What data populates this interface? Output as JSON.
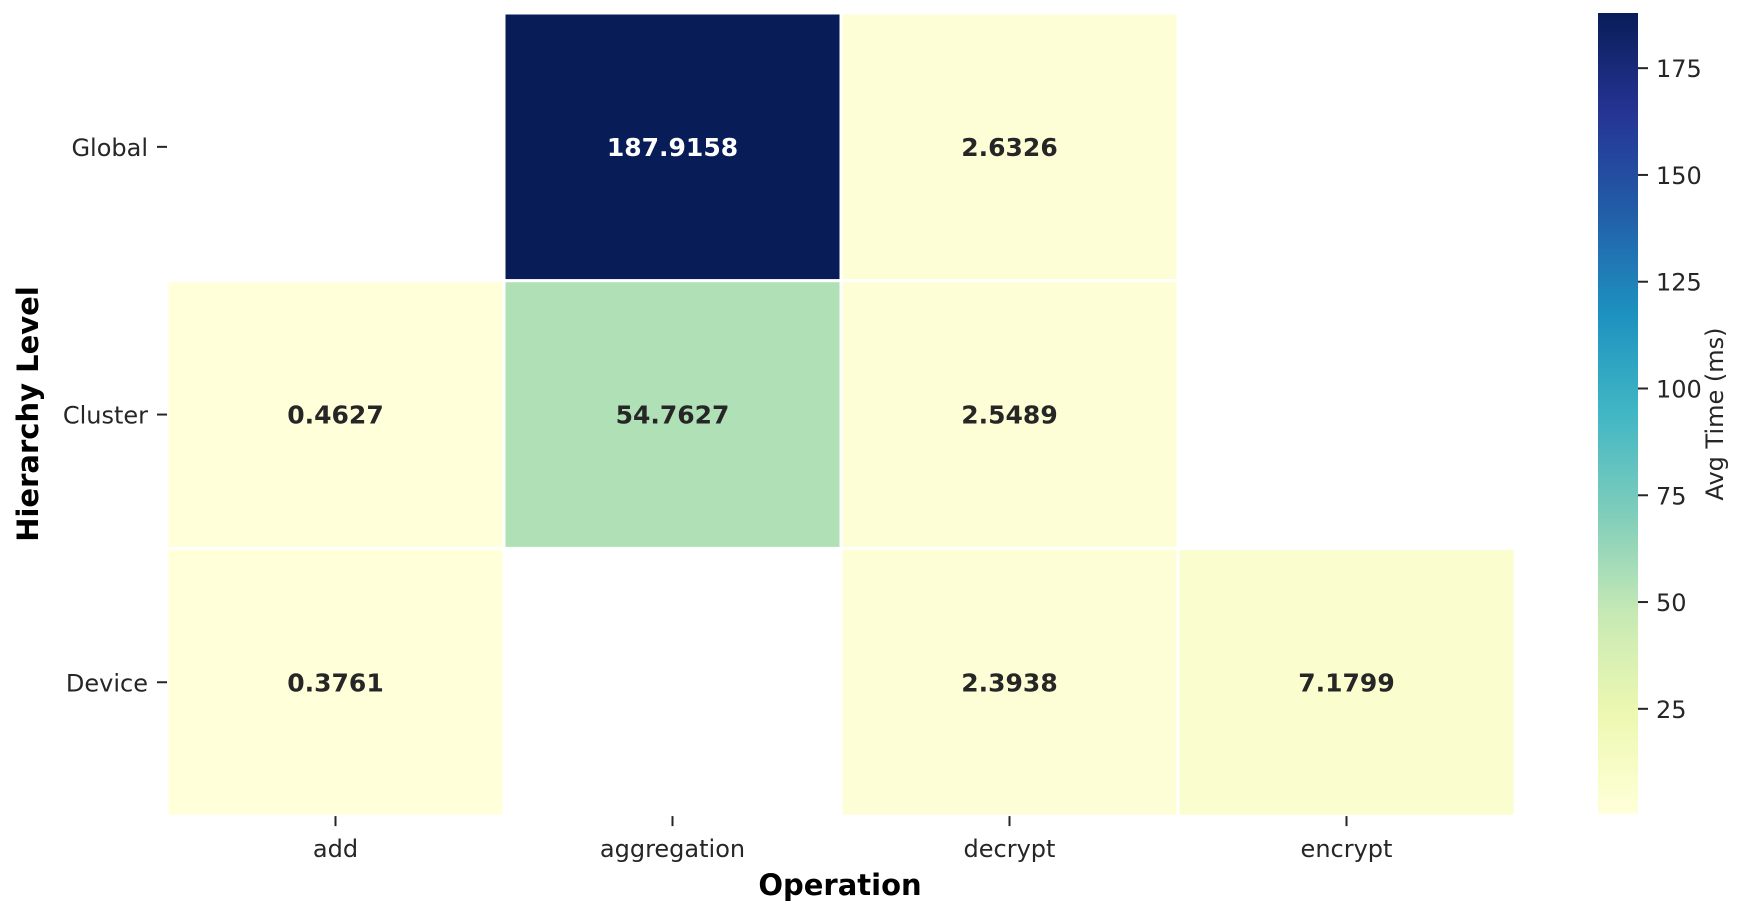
{
  "chart_data": {
    "type": "heatmap",
    "xlabel": "Operation",
    "ylabel": "Hierarchy Level",
    "x_categories": [
      "add",
      "aggregation",
      "decrypt",
      "encrypt"
    ],
    "y_categories": [
      "Global",
      "Cluster",
      "Device"
    ],
    "values": [
      [
        null,
        187.9158,
        2.6326,
        null
      ],
      [
        0.4627,
        54.7627,
        2.5489,
        null
      ],
      [
        0.3761,
        null,
        2.3938,
        7.1799
      ]
    ],
    "value_labels": [
      [
        null,
        "187.9158",
        "2.6326",
        null
      ],
      [
        "0.4627",
        "54.7627",
        "2.5489",
        null
      ],
      [
        "0.3761",
        null,
        "2.3938",
        "7.1799"
      ]
    ],
    "colorbar": {
      "label": "Avg Time (ms)",
      "colormap": "YlGnBu",
      "range": [
        0.3761,
        187.9158
      ],
      "ticks": [
        25,
        50,
        75,
        100,
        125,
        150,
        175
      ]
    },
    "colors": {
      "cell_border": "#ffffff",
      "dark_text": "#262626",
      "light_text": "#ffffff"
    }
  }
}
